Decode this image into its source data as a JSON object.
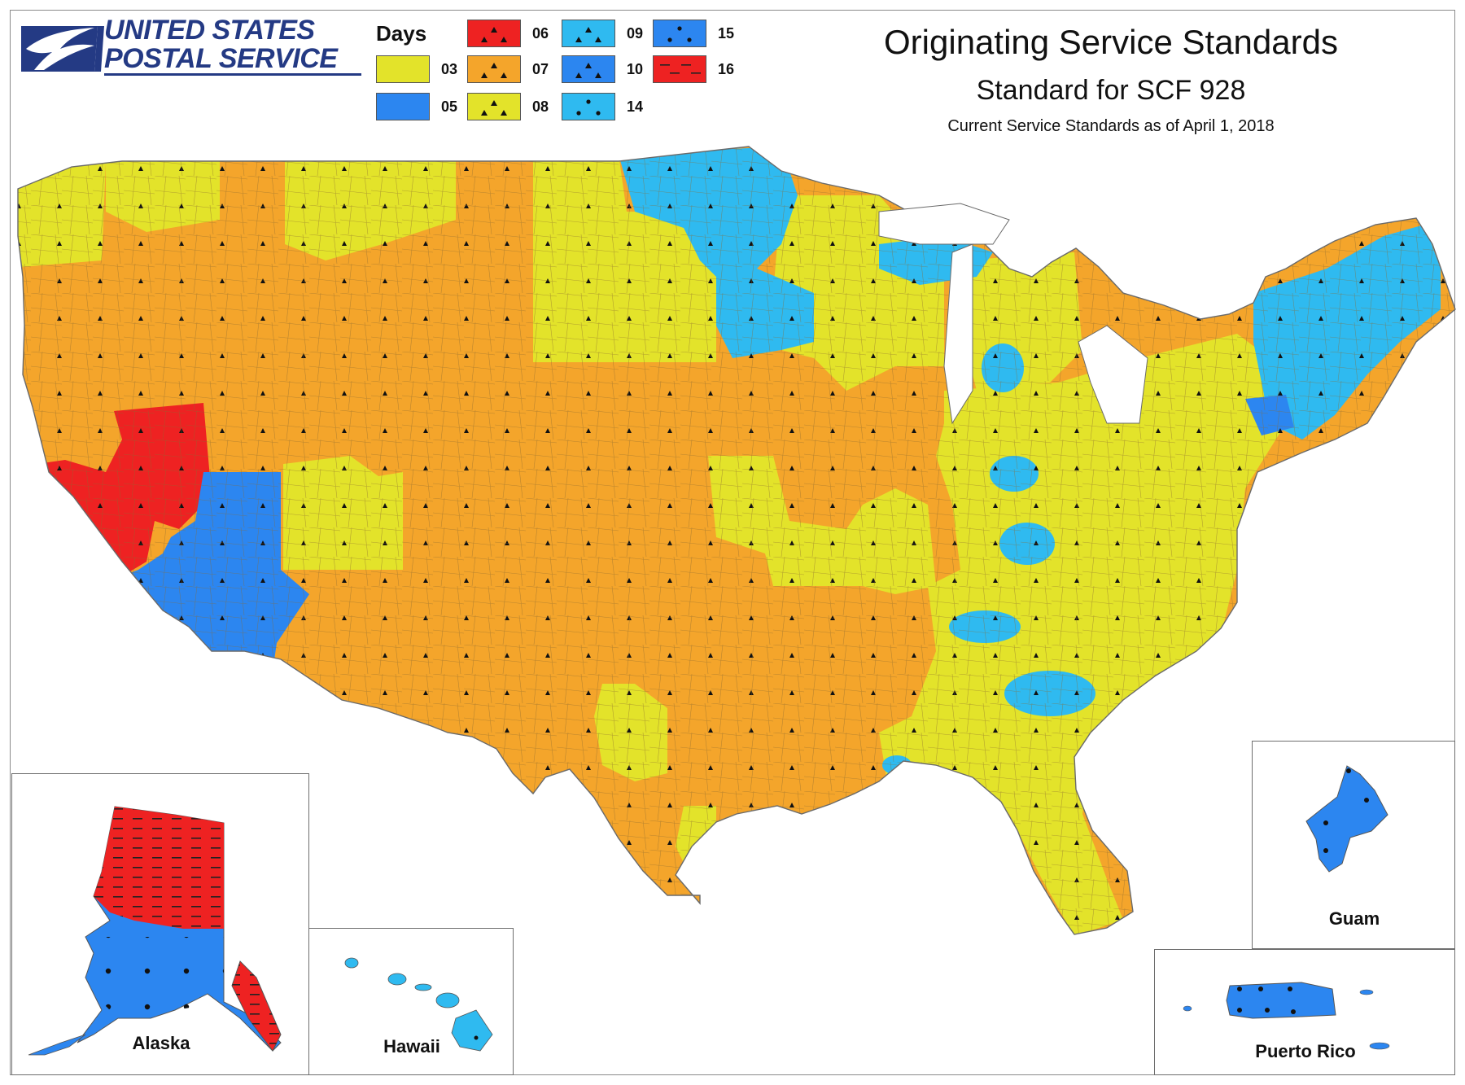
{
  "header": {
    "logo_line1": "UNITED STATES",
    "logo_line2": "POSTAL SERVICE",
    "title": "Originating Service Standards",
    "subtitle": "Standard for SCF 928",
    "date_line": "Current Service Standards as of April 1, 2018"
  },
  "legend": {
    "title": "Days",
    "items": [
      {
        "label": "03",
        "color": "#e3e32a",
        "pattern": "none"
      },
      {
        "label": "05",
        "color": "#2c86f0",
        "pattern": "none"
      },
      {
        "label": "06",
        "color": "#ee2222",
        "pattern": "triangles"
      },
      {
        "label": "07",
        "color": "#f4a52b",
        "pattern": "triangles"
      },
      {
        "label": "08",
        "color": "#e3e32a",
        "pattern": "triangles"
      },
      {
        "label": "09",
        "color": "#2fbaf0",
        "pattern": "triangles"
      },
      {
        "label": "10",
        "color": "#2c86f0",
        "pattern": "triangles"
      },
      {
        "label": "14",
        "color": "#2fbaf0",
        "pattern": "dots"
      },
      {
        "label": "15",
        "color": "#2c86f0",
        "pattern": "dots"
      },
      {
        "label": "16",
        "color": "#ee2222",
        "pattern": "dashes"
      }
    ]
  },
  "insets": {
    "alaska": "Alaska",
    "hawaii": "Hawaii",
    "guam": "Guam",
    "puerto_rico": "Puerto Rico"
  },
  "colors": {
    "logo_blue": "#243a84",
    "border": "#6e6e6e",
    "region_edge": "#7a7a7a"
  },
  "icons": {
    "logo": "usps-eagle-icon"
  }
}
